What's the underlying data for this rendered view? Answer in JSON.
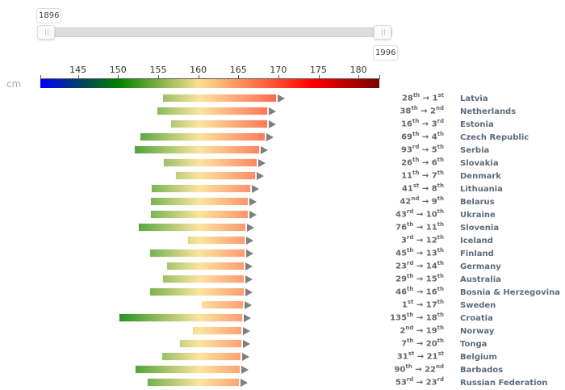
{
  "slider": {
    "start_year": "1896",
    "end_year": "1996"
  },
  "chart_data": {
    "type": "bar",
    "subtype": "range-arrow",
    "unit_label": "cm",
    "xlim": [
      140.3,
      182.6
    ],
    "ticks": [
      145,
      150,
      155,
      160,
      165,
      170,
      175,
      180
    ],
    "colorscale": [
      "#0000ff",
      "#008000",
      "#fbe08d",
      "#ff4a30",
      "#ff0000",
      "#7a0000"
    ],
    "series": [
      {
        "country": "Latvia",
        "rank_from": "28",
        "sfx_from": "th",
        "rank_to": "1",
        "sfx_to": "st",
        "h1896": 155.5,
        "h1996": 169.8
      },
      {
        "country": "Netherlands",
        "rank_from": "38",
        "sfx_from": "th",
        "rank_to": "2",
        "sfx_to": "nd",
        "h1896": 154.8,
        "h1996": 168.7
      },
      {
        "country": "Estonia",
        "rank_from": "16",
        "sfx_from": "th",
        "rank_to": "3",
        "sfx_to": "rd",
        "h1896": 156.5,
        "h1996": 168.7
      },
      {
        "country": "Czech Republic",
        "rank_from": "69",
        "sfx_from": "th",
        "rank_to": "4",
        "sfx_to": "th",
        "h1896": 152.7,
        "h1996": 168.4
      },
      {
        "country": "Serbia",
        "rank_from": "93",
        "sfx_from": "rd",
        "rank_to": "5",
        "sfx_to": "th",
        "h1896": 152.0,
        "h1996": 167.7
      },
      {
        "country": "Slovakia",
        "rank_from": "26",
        "sfx_from": "th",
        "rank_to": "6",
        "sfx_to": "th",
        "h1896": 155.6,
        "h1996": 167.4
      },
      {
        "country": "Denmark",
        "rank_from": "11",
        "sfx_from": "th",
        "rank_to": "7",
        "sfx_to": "th",
        "h1896": 157.1,
        "h1996": 167.2
      },
      {
        "country": "Lithuania",
        "rank_from": "41",
        "sfx_from": "st",
        "rank_to": "8",
        "sfx_to": "th",
        "h1896": 154.1,
        "h1996": 166.6
      },
      {
        "country": "Belarus",
        "rank_from": "42",
        "sfx_from": "nd",
        "rank_to": "9",
        "sfx_to": "th",
        "h1896": 154.0,
        "h1996": 166.3
      },
      {
        "country": "Ukraine",
        "rank_from": "43",
        "sfx_from": "rd",
        "rank_to": "10",
        "sfx_to": "th",
        "h1896": 154.0,
        "h1996": 166.3
      },
      {
        "country": "Slovenia",
        "rank_from": "76",
        "sfx_from": "th",
        "rank_to": "11",
        "sfx_to": "th",
        "h1896": 152.5,
        "h1996": 166.0
      },
      {
        "country": "Iceland",
        "rank_from": "3",
        "sfx_from": "rd",
        "rank_to": "12",
        "sfx_to": "th",
        "h1896": 158.6,
        "h1996": 165.9
      },
      {
        "country": "Finland",
        "rank_from": "45",
        "sfx_from": "th",
        "rank_to": "13",
        "sfx_to": "th",
        "h1896": 153.9,
        "h1996": 165.9
      },
      {
        "country": "Germany",
        "rank_from": "23",
        "sfx_from": "rd",
        "rank_to": "14",
        "sfx_to": "th",
        "h1896": 156.0,
        "h1996": 165.8
      },
      {
        "country": "Australia",
        "rank_from": "29",
        "sfx_from": "th",
        "rank_to": "15",
        "sfx_to": "th",
        "h1896": 155.5,
        "h1996": 165.8
      },
      {
        "country": "Bosnia & Herzegovina",
        "rank_from": "46",
        "sfx_from": "th",
        "rank_to": "16",
        "sfx_to": "th",
        "h1896": 153.9,
        "h1996": 165.8
      },
      {
        "country": "Sweden",
        "rank_from": "1",
        "sfx_from": "st",
        "rank_to": "17",
        "sfx_to": "th",
        "h1896": 160.3,
        "h1996": 165.7
      },
      {
        "country": "Croatia",
        "rank_from": "135",
        "sfx_from": "th",
        "rank_to": "18",
        "sfx_to": "th",
        "h1896": 150.1,
        "h1996": 165.6
      },
      {
        "country": "Norway",
        "rank_from": "2",
        "sfx_from": "nd",
        "rank_to": "19",
        "sfx_to": "th",
        "h1896": 159.2,
        "h1996": 165.5
      },
      {
        "country": "Tonga",
        "rank_from": "7",
        "sfx_from": "th",
        "rank_to": "20",
        "sfx_to": "th",
        "h1896": 157.6,
        "h1996": 165.5
      },
      {
        "country": "Belgium",
        "rank_from": "31",
        "sfx_from": "st",
        "rank_to": "21",
        "sfx_to": "st",
        "h1896": 155.4,
        "h1996": 165.4
      },
      {
        "country": "Barbados",
        "rank_from": "90",
        "sfx_from": "th",
        "rank_to": "22",
        "sfx_to": "nd",
        "h1896": 152.1,
        "h1996": 165.3
      },
      {
        "country": "Russian Federation",
        "rank_from": "53",
        "sfx_from": "rd",
        "rank_to": "23",
        "sfx_to": "rd",
        "h1896": 153.6,
        "h1996": 165.2
      }
    ]
  }
}
